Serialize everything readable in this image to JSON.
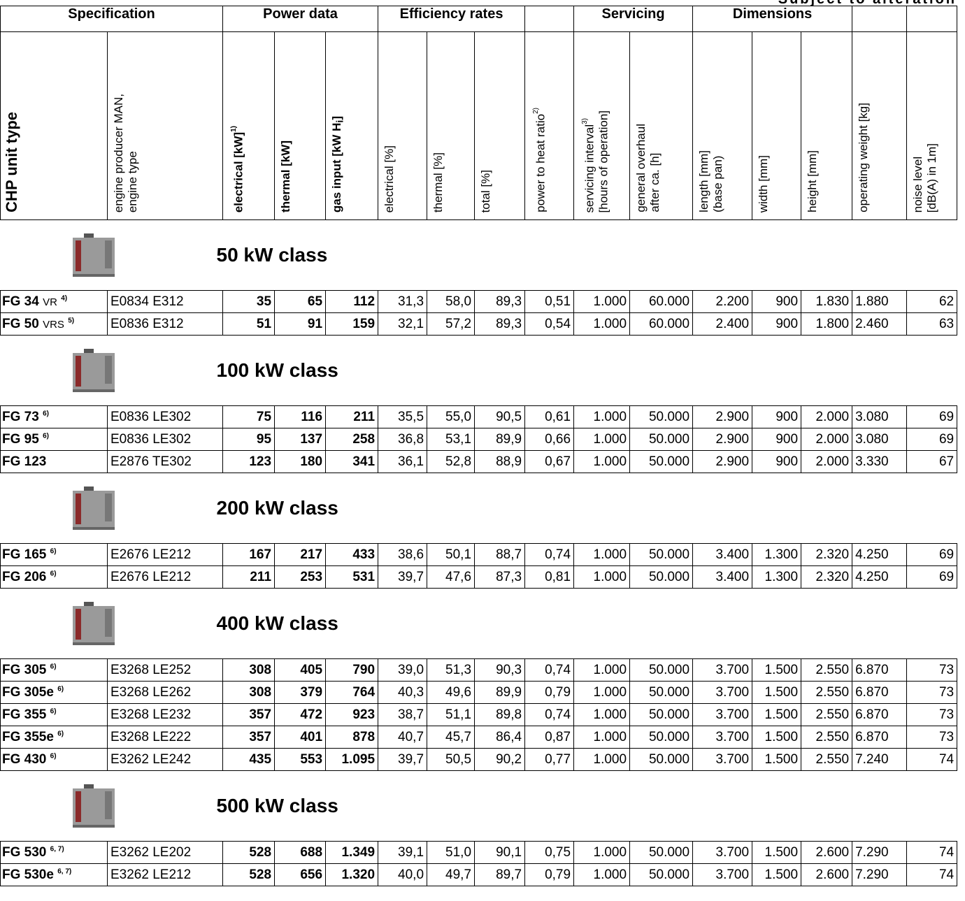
{
  "note": "Subject to alteration",
  "groups": [
    "Specification",
    "Power data",
    "Efficiency rates",
    "Servicing",
    "Dimensions"
  ],
  "headers": [
    [
      {
        "text": "CHP unit type"
      }
    ],
    [
      {
        "text": "engine producer MAN,"
      },
      {
        "text": "engine type"
      }
    ],
    [
      {
        "text": "electrical [kW]",
        "sup": "1)"
      }
    ],
    [
      {
        "text": "thermal [kW]"
      }
    ],
    [
      {
        "text": "gas input [kW H",
        "sub": "i",
        "tail": "]"
      }
    ],
    [
      {
        "text": "electrical [%]"
      }
    ],
    [
      {
        "text": "thermal [%]"
      }
    ],
    [
      {
        "text": "total [%]"
      }
    ],
    [
      {
        "text": "power to heat ratio",
        "sup": "2)"
      }
    ],
    [
      {
        "text": "servicing interval",
        "sup": "3)"
      },
      {
        "text": "[hours of operation]"
      }
    ],
    [
      {
        "text": "general overhaul"
      },
      {
        "text": "after ca. [h]"
      }
    ],
    [
      {
        "text": "length [mm]"
      },
      {
        "text": "(base pan)"
      }
    ],
    [
      {
        "text": "width [mm]"
      }
    ],
    [
      {
        "text": "height [mm]"
      }
    ],
    [
      {
        "text": "operating weight [kg]"
      }
    ],
    [
      {
        "text": "noise level"
      },
      {
        "text": "[dB(A) in 1m]"
      }
    ]
  ],
  "sections": [
    {
      "label": "50 kW class",
      "rows": [
        {
          "model": "FG 34",
          "suffix": "VR",
          "note": "4)",
          "cells": [
            "E0834 E312",
            "35",
            "65",
            "112",
            "31,3",
            "58,0",
            "89,3",
            "0,51",
            "1.000",
            "60.000",
            "2.200",
            "900",
            "1.830",
            "1.880",
            "62"
          ]
        },
        {
          "model": "FG 50",
          "suffix": "VRS",
          "note": "5)",
          "cells": [
            "E0836 E312",
            "51",
            "91",
            "159",
            "32,1",
            "57,2",
            "89,3",
            "0,54",
            "1.000",
            "60.000",
            "2.400",
            "900",
            "1.800",
            "2.460",
            "63"
          ]
        }
      ]
    },
    {
      "label": "100 kW class",
      "rows": [
        {
          "model": "FG 73",
          "note": "6)",
          "cells": [
            "E0836 LE302",
            "75",
            "116",
            "211",
            "35,5",
            "55,0",
            "90,5",
            "0,61",
            "1.000",
            "50.000",
            "2.900",
            "900",
            "2.000",
            "3.080",
            "69"
          ]
        },
        {
          "model": "FG 95",
          "note": "6)",
          "cells": [
            "E0836 LE302",
            "95",
            "137",
            "258",
            "36,8",
            "53,1",
            "89,9",
            "0,66",
            "1.000",
            "50.000",
            "2.900",
            "900",
            "2.000",
            "3.080",
            "69"
          ]
        },
        {
          "model": "FG 123",
          "cells": [
            "E2876 TE302",
            "123",
            "180",
            "341",
            "36,1",
            "52,8",
            "88,9",
            "0,67",
            "1.000",
            "50.000",
            "2.900",
            "900",
            "2.000",
            "3.330",
            "67"
          ]
        }
      ]
    },
    {
      "label": "200 kW class",
      "rows": [
        {
          "model": "FG 165",
          "note": "6)",
          "cells": [
            "E2676 LE212",
            "167",
            "217",
            "433",
            "38,6",
            "50,1",
            "88,7",
            "0,74",
            "1.000",
            "50.000",
            "3.400",
            "1.300",
            "2.320",
            "4.250",
            "69"
          ]
        },
        {
          "model": "FG 206",
          "note": "6)",
          "cells": [
            "E2676 LE212",
            "211",
            "253",
            "531",
            "39,7",
            "47,6",
            "87,3",
            "0,81",
            "1.000",
            "50.000",
            "3.400",
            "1.300",
            "2.320",
            "4.250",
            "69"
          ]
        }
      ]
    },
    {
      "label": "400 kW class",
      "rows": [
        {
          "model": "FG 305",
          "note": "6)",
          "cells": [
            "E3268 LE252",
            "308",
            "405",
            "790",
            "39,0",
            "51,3",
            "90,3",
            "0,74",
            "1.000",
            "50.000",
            "3.700",
            "1.500",
            "2.550",
            "6.870",
            "73"
          ]
        },
        {
          "model": "FG 305e",
          "note": "6)",
          "cells": [
            "E3268 LE262",
            "308",
            "379",
            "764",
            "40,3",
            "49,6",
            "89,9",
            "0,79",
            "1.000",
            "50.000",
            "3.700",
            "1.500",
            "2.550",
            "6.870",
            "73"
          ]
        },
        {
          "model": "FG 355",
          "note": "6)",
          "cells": [
            "E3268 LE232",
            "357",
            "472",
            "923",
            "38,7",
            "51,1",
            "89,8",
            "0,74",
            "1.000",
            "50.000",
            "3.700",
            "1.500",
            "2.550",
            "6.870",
            "73"
          ]
        },
        {
          "model": "FG 355e",
          "note": "6)",
          "cells": [
            "E3268 LE222",
            "357",
            "401",
            "878",
            "40,7",
            "45,7",
            "86,4",
            "0,87",
            "1.000",
            "50.000",
            "3.700",
            "1.500",
            "2.550",
            "6.870",
            "73"
          ]
        },
        {
          "model": "FG 430",
          "note": "6)",
          "cells": [
            "E3262 LE242",
            "435",
            "553",
            "1.095",
            "39,7",
            "50,5",
            "90,2",
            "0,77",
            "1.000",
            "50.000",
            "3.700",
            "1.500",
            "2.550",
            "7.240",
            "74"
          ]
        }
      ]
    },
    {
      "label": "500 kW class",
      "rows": [
        {
          "model": "FG 530",
          "note": "6, 7)",
          "cells": [
            "E3262 LE202",
            "528",
            "688",
            "1.349",
            "39,1",
            "51,0",
            "90,1",
            "0,75",
            "1.000",
            "50.000",
            "3.700",
            "1.500",
            "2.600",
            "7.290",
            "74"
          ]
        },
        {
          "model": "FG 530e",
          "note": "6, 7)",
          "cells": [
            "E3262 LE212",
            "528",
            "656",
            "1.320",
            "40,0",
            "49,7",
            "89,7",
            "0,79",
            "1.000",
            "50.000",
            "3.700",
            "1.500",
            "2.600",
            "7.290",
            "74"
          ]
        }
      ]
    }
  ]
}
